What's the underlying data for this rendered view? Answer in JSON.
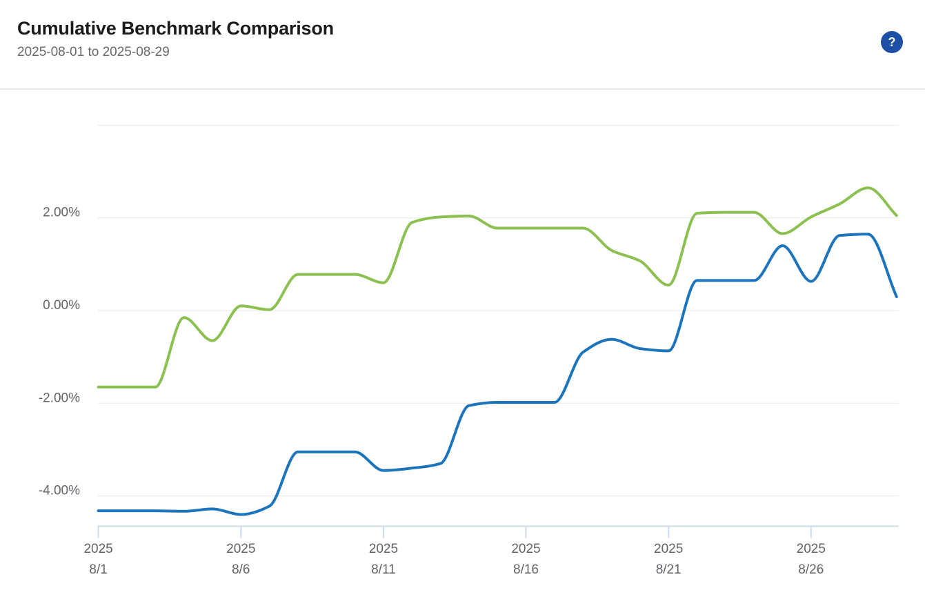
{
  "header": {
    "title": "Cumulative Benchmark Comparison",
    "date_range": "2025-08-01 to 2025-08-29",
    "help_glyph": "?"
  },
  "colors": {
    "help_badge": "#1d4fa6",
    "grid": "#e8e8e8",
    "axis_line": "#cbdcef",
    "axis_text": "#616569",
    "title_text": "#1b1b1b",
    "subtitle_text": "#67696c",
    "divider": "#e9e9e9",
    "green_series": "#8cc152",
    "blue_series": "#1b74bc"
  },
  "chart_data": {
    "type": "line",
    "title": "Cumulative Benchmark Comparison",
    "subtitle": "2025-08-01 to 2025-08-29",
    "grid": true,
    "legend": "none",
    "x_unit": "date",
    "x": [
      "2025-08-01",
      "2025-08-02",
      "2025-08-03",
      "2025-08-04",
      "2025-08-05",
      "2025-08-06",
      "2025-08-07",
      "2025-08-08",
      "2025-08-09",
      "2025-08-10",
      "2025-08-11",
      "2025-08-12",
      "2025-08-13",
      "2025-08-14",
      "2025-08-15",
      "2025-08-16",
      "2025-08-17",
      "2025-08-18",
      "2025-08-19",
      "2025-08-20",
      "2025-08-21",
      "2025-08-22",
      "2025-08-23",
      "2025-08-24",
      "2025-08-25",
      "2025-08-26",
      "2025-08-27",
      "2025-08-28",
      "2025-08-29"
    ],
    "y_axis": {
      "format": "percent",
      "tick_labels": [
        "2.00%",
        "0.00%",
        "-2.00%",
        "-4.00%"
      ],
      "tick_values": [
        2,
        0,
        -2,
        -4
      ],
      "gridline_values": [
        4,
        2,
        0,
        -2,
        -4
      ],
      "ylim": [
        -4.7,
        4.8
      ]
    },
    "x_axis": {
      "ticks": [
        {
          "line1": "2025",
          "line2": "8/1",
          "day": 1
        },
        {
          "line1": "2025",
          "line2": "8/6",
          "day": 6
        },
        {
          "line1": "2025",
          "line2": "8/11",
          "day": 11
        },
        {
          "line1": "2025",
          "line2": "8/16",
          "day": 16
        },
        {
          "line1": "2025",
          "line2": "8/21",
          "day": 21
        },
        {
          "line1": "2025",
          "line2": "8/26",
          "day": 26
        }
      ]
    },
    "series": [
      {
        "id": "green-line",
        "color": "#8cc152",
        "values_pct": [
          -1.65,
          -1.65,
          -1.65,
          -0.15,
          -0.65,
          0.1,
          0.02,
          0.78,
          0.78,
          0.78,
          0.6,
          1.9,
          2.02,
          2.04,
          1.78,
          1.78,
          1.78,
          1.78,
          1.3,
          1.07,
          0.55,
          2.1,
          2.12,
          2.12,
          1.66,
          2.02,
          2.3,
          2.65,
          2.05
        ]
      },
      {
        "id": "blue-line",
        "color": "#1b74bc",
        "values_pct": [
          -4.32,
          -4.32,
          -4.32,
          -4.33,
          -4.28,
          -4.4,
          -4.22,
          -3.05,
          -3.05,
          -3.05,
          -3.45,
          -3.4,
          -3.3,
          -2.05,
          -1.98,
          -1.98,
          -1.98,
          -0.9,
          -0.62,
          -0.82,
          -0.87,
          0.65,
          0.65,
          0.65,
          1.4,
          0.63,
          1.62,
          1.65,
          0.3
        ]
      }
    ]
  }
}
